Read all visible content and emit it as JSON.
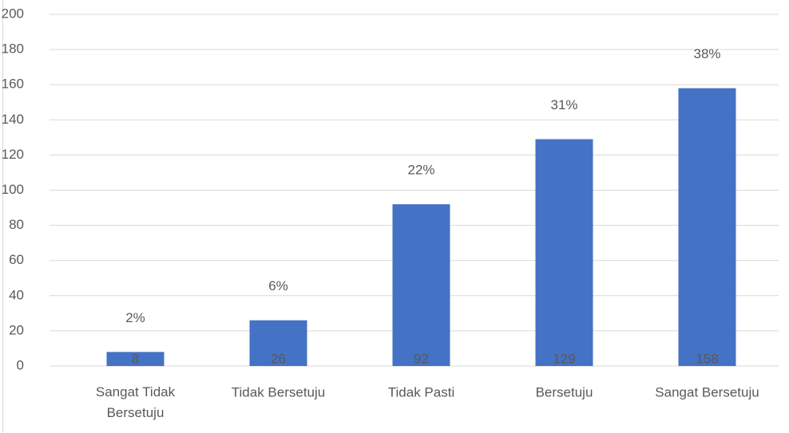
{
  "chart_data": {
    "type": "bar",
    "categories": [
      "Sangat Tidak Bersetuju",
      "Tidak Bersetuju",
      "Tidak Pasti",
      "Bersetuju",
      "Sangat Bersetuju"
    ],
    "values": [
      8,
      26,
      92,
      129,
      158
    ],
    "percent_labels": [
      "2%",
      "6%",
      "22%",
      "31%",
      "38%"
    ],
    "color": "#4472c4",
    "ylim": [
      0,
      200
    ],
    "yticks": [
      0,
      20,
      40,
      60,
      80,
      100,
      120,
      140,
      160,
      180,
      200
    ],
    "grid": true
  }
}
